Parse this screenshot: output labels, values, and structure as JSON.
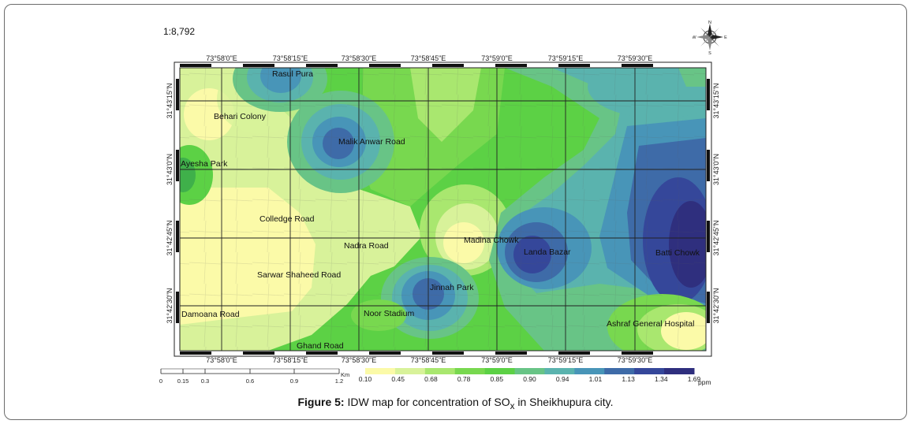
{
  "scale_ratio": "1:8,792",
  "compass": {
    "n": "N",
    "s": "S",
    "e": "E",
    "w": "W"
  },
  "longitude_labels": [
    "73°58'0\"E",
    "73°58'15\"E",
    "73°58'30\"E",
    "73°58'45\"E",
    "73°59'0\"E",
    "73°59'15\"E",
    "73°59'30\"E"
  ],
  "latitude_labels": [
    "31°43'15\"N",
    "31°43'0\"N",
    "31°42'45\"N",
    "31°42'30\"N"
  ],
  "places": [
    "Rasul Pura",
    "Behari Colony",
    "Malik Anwar Road",
    "Ayesha Park",
    "Colledge Road",
    "Nadra Road",
    "Madina Chowk",
    "Landa Bazar",
    "Batti Chowk",
    "Sarwar Shaheed Road",
    "Jinnah Park",
    "Damoana Road",
    "Noor Stadium",
    "Ashraf General Hospital",
    "Ghand Road"
  ],
  "scale_bar": {
    "unit": "Km",
    "ticks": [
      "0",
      "0.15",
      "0.3",
      "0.6",
      "0.9",
      "1.2"
    ]
  },
  "legend": {
    "unit": "ppm",
    "values": [
      "0.10",
      "0.45",
      "0.68",
      "0.78",
      "0.85",
      "0.90",
      "0.94",
      "1.01",
      "1.13",
      "1.34",
      "1.69"
    ],
    "colors": [
      "#fbfaa8",
      "#d8f29a",
      "#a9e76f",
      "#78d84f",
      "#5cd145",
      "#68c486",
      "#5ab3ae",
      "#4895b8",
      "#3e6ba8",
      "#35479a",
      "#2f2f7e"
    ]
  },
  "caption": {
    "prefix": "Figure 5:",
    "text_before": "IDW map for concentration of SO",
    "subscript": "x",
    "text_after": " in Sheikhupura city."
  }
}
